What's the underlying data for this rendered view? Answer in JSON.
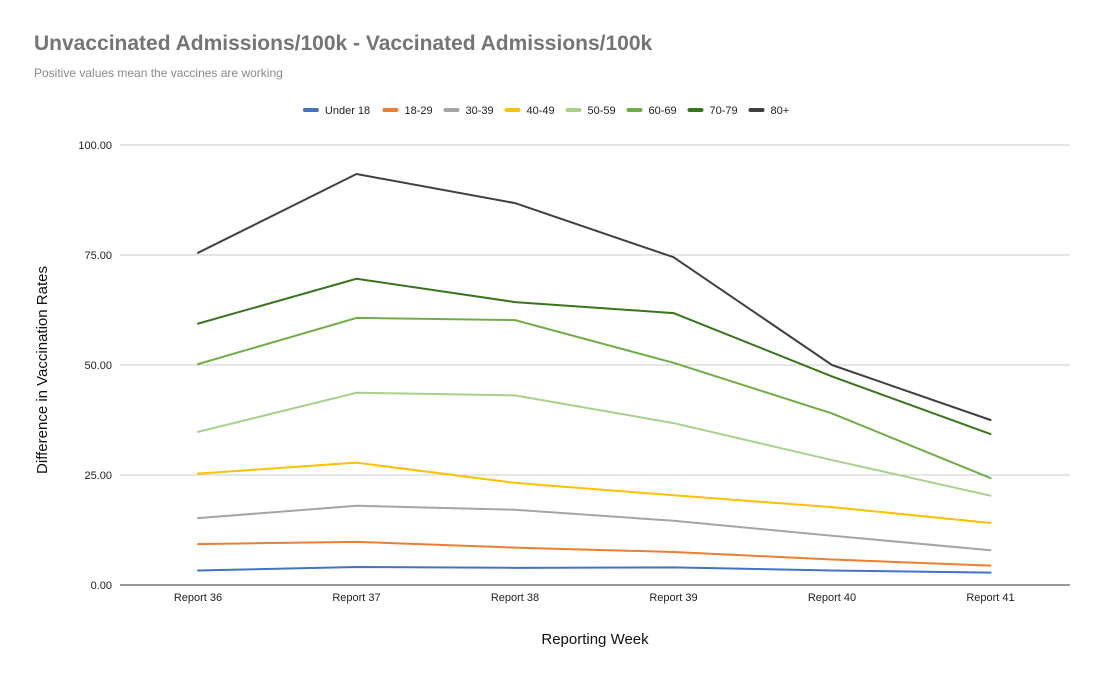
{
  "chart_data": {
    "type": "line",
    "title": "Unvaccinated Admissions/100k - Vaccinated Admissions/100k",
    "subtitle": "Positive values mean the vaccines are working",
    "xlabel": "Reporting Week",
    "ylabel": "Difference in Vaccination Rates",
    "categories": [
      "Report 36",
      "Report 37",
      "Report 38",
      "Report 39",
      "Report 40",
      "Report 41"
    ],
    "y_ticks": [
      "0.00",
      "25.00",
      "50.00",
      "75.00",
      "100.00"
    ],
    "ylim": [
      0,
      100
    ],
    "grid": true,
    "legend_position": "top",
    "series": [
      {
        "name": "Under 18",
        "color": "#4472c4",
        "values": [
          3.3,
          4.1,
          3.9,
          4.0,
          3.3,
          2.8
        ]
      },
      {
        "name": "18-29",
        "color": "#ed7d31",
        "values": [
          9.3,
          9.8,
          8.5,
          7.5,
          5.8,
          4.4
        ]
      },
      {
        "name": "30-39",
        "color": "#a5a5a5",
        "values": [
          15.2,
          18.0,
          17.1,
          14.6,
          11.2,
          7.9
        ]
      },
      {
        "name": "40-49",
        "color": "#ffc000",
        "values": [
          25.3,
          27.8,
          23.2,
          20.4,
          17.7,
          14.1
        ]
      },
      {
        "name": "50-59",
        "color": "#a9d18e",
        "values": [
          34.8,
          43.7,
          43.1,
          36.8,
          28.4,
          20.3
        ]
      },
      {
        "name": "60-69",
        "color": "#70ad47",
        "values": [
          50.2,
          60.7,
          60.2,
          50.5,
          39.0,
          24.3
        ]
      },
      {
        "name": "70-79",
        "color": "#38761d",
        "values": [
          59.4,
          69.6,
          64.3,
          61.8,
          47.4,
          34.3
        ]
      },
      {
        "name": "80+",
        "color": "#404040",
        "values": [
          75.5,
          93.4,
          86.8,
          74.5,
          50.0,
          37.5
        ]
      }
    ]
  }
}
